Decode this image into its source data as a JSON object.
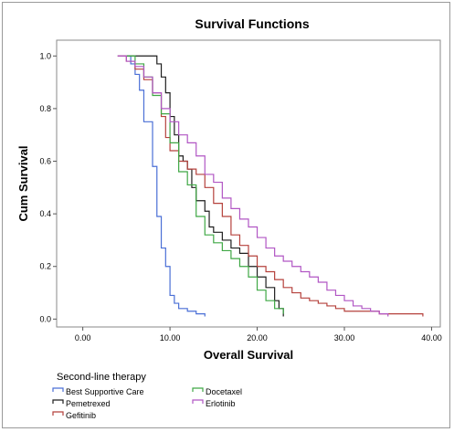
{
  "chart_data": {
    "type": "line",
    "step": true,
    "title": "Survival Functions",
    "xlabel": "Overall Survival",
    "ylabel": "Cum Survival",
    "xlim": [
      -3,
      41
    ],
    "ylim": [
      -0.03,
      1.06
    ],
    "x_ticks": [
      0,
      10,
      20,
      30,
      40
    ],
    "x_tick_labels": [
      "0.00",
      "10.00",
      "20.00",
      "30.00",
      "40.00"
    ],
    "y_ticks": [
      0,
      0.2,
      0.4,
      0.6,
      0.8,
      1.0
    ],
    "y_tick_labels": [
      "0.0",
      "0.2",
      "0.4",
      "0.6",
      "0.8",
      "1.0"
    ],
    "grid": false,
    "legend_title": "Second-line therapy",
    "legend_position": "bottom-left",
    "series": [
      {
        "name": "Best Supportive Care",
        "color": "#4a6fd6",
        "x": [
          4,
          5.5,
          6,
          6.5,
          7,
          8,
          8.5,
          9,
          9.5,
          10,
          10.5,
          11,
          12,
          13,
          14
        ],
        "y": [
          1.0,
          0.97,
          0.93,
          0.87,
          0.75,
          0.58,
          0.39,
          0.27,
          0.2,
          0.09,
          0.06,
          0.04,
          0.03,
          0.02,
          0.01
        ]
      },
      {
        "name": "Pemetrexed",
        "color": "#1e1e1e",
        "x": [
          5,
          8,
          8.5,
          9,
          9.5,
          10,
          10.5,
          11,
          11.5,
          12,
          12.5,
          13,
          14,
          14.5,
          15,
          16,
          17,
          18,
          19,
          20,
          21,
          22,
          22.5,
          23
        ],
        "y": [
          1.0,
          1.0,
          0.97,
          0.92,
          0.86,
          0.77,
          0.7,
          0.62,
          0.6,
          0.57,
          0.5,
          0.45,
          0.41,
          0.35,
          0.33,
          0.3,
          0.27,
          0.25,
          0.2,
          0.16,
          0.12,
          0.07,
          0.04,
          0.01
        ]
      },
      {
        "name": "Gefitinib",
        "color": "#b5413c",
        "x": [
          4,
          5,
          6,
          7,
          8,
          9,
          9.5,
          10,
          11,
          12,
          13,
          14,
          15,
          16,
          17,
          18,
          19,
          20,
          21,
          22,
          23,
          24,
          25,
          26,
          27,
          28,
          29,
          30,
          32,
          34,
          35,
          39
        ],
        "y": [
          1.0,
          0.98,
          0.95,
          0.91,
          0.86,
          0.77,
          0.69,
          0.64,
          0.6,
          0.57,
          0.55,
          0.5,
          0.44,
          0.39,
          0.32,
          0.28,
          0.24,
          0.2,
          0.18,
          0.15,
          0.12,
          0.1,
          0.08,
          0.07,
          0.06,
          0.05,
          0.04,
          0.03,
          0.03,
          0.02,
          0.02,
          0.01
        ]
      },
      {
        "name": "Docetaxel",
        "color": "#3fa845",
        "x": [
          5,
          6,
          7,
          8,
          9,
          10,
          11,
          12,
          13,
          14,
          15,
          16,
          17,
          18,
          19,
          20,
          21,
          22,
          23
        ],
        "y": [
          1.0,
          0.97,
          0.92,
          0.85,
          0.78,
          0.67,
          0.56,
          0.51,
          0.39,
          0.32,
          0.29,
          0.26,
          0.23,
          0.2,
          0.16,
          0.11,
          0.07,
          0.04,
          0.02
        ]
      },
      {
        "name": "Erlotinib",
        "color": "#b156c4",
        "x": [
          4,
          5,
          6,
          7,
          8,
          9,
          10,
          11,
          12,
          13,
          14,
          15,
          16,
          17,
          18,
          19,
          20,
          21,
          22,
          23,
          24,
          25,
          26,
          27,
          28,
          29,
          30,
          31,
          32,
          33,
          34,
          35
        ],
        "y": [
          1.0,
          0.98,
          0.96,
          0.92,
          0.86,
          0.8,
          0.75,
          0.7,
          0.67,
          0.62,
          0.55,
          0.52,
          0.46,
          0.42,
          0.38,
          0.35,
          0.31,
          0.27,
          0.24,
          0.22,
          0.2,
          0.18,
          0.16,
          0.14,
          0.11,
          0.09,
          0.07,
          0.05,
          0.04,
          0.03,
          0.02,
          0.01
        ]
      }
    ]
  }
}
